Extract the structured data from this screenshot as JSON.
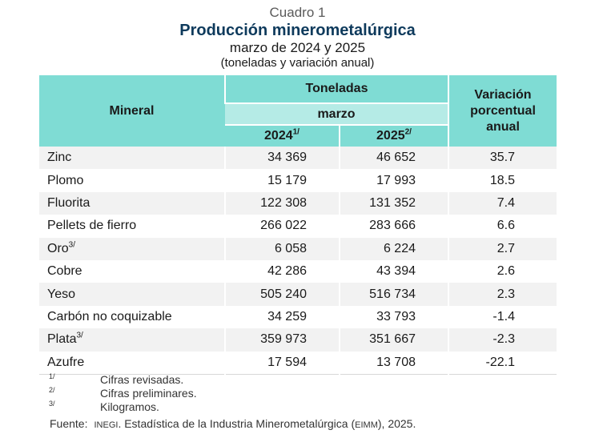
{
  "header": {
    "cuadro": "Cuadro 1",
    "title": "Producción minerometalúrgica",
    "subtitle": "marzo de 2024 y 2025",
    "units": "(toneladas y variación anual)"
  },
  "table": {
    "col_mineral": "Mineral",
    "col_toneladas": "Toneladas",
    "col_month": "marzo",
    "col_year1": "2024",
    "col_year1_note": "1/",
    "col_year2": "2025",
    "col_year2_note": "2/",
    "col_var": "Variación porcentual anual",
    "rows": [
      {
        "mineral": "Zinc",
        "note": "",
        "y2024": "34 369",
        "y2025": "46 652",
        "var": "35.7"
      },
      {
        "mineral": "Plomo",
        "note": "",
        "y2024": "15 179",
        "y2025": "17 993",
        "var": "18.5"
      },
      {
        "mineral": "Fluorita",
        "note": "",
        "y2024": "122 308",
        "y2025": "131 352",
        "var": "7.4"
      },
      {
        "mineral": "Pellets de fierro",
        "note": "",
        "y2024": "266 022",
        "y2025": "283 666",
        "var": "6.6"
      },
      {
        "mineral": "Oro",
        "note": "3/",
        "y2024": "6 058",
        "y2025": "6 224",
        "var": "2.7"
      },
      {
        "mineral": "Cobre",
        "note": "",
        "y2024": "42 286",
        "y2025": "43 394",
        "var": "2.6"
      },
      {
        "mineral": "Yeso",
        "note": "",
        "y2024": "505 240",
        "y2025": "516 734",
        "var": "2.3"
      },
      {
        "mineral": "Carbón no coquizable",
        "note": "",
        "y2024": "34 259",
        "y2025": "33 793",
        "var": "-1.4"
      },
      {
        "mineral": "Plata",
        "note": "3/",
        "y2024": "359 973",
        "y2025": "351 667",
        "var": "-2.3"
      },
      {
        "mineral": "Azufre",
        "note": "",
        "y2024": "17 594",
        "y2025": "13 708",
        "var": "-22.1"
      }
    ]
  },
  "notes": [
    {
      "mark": "1/",
      "text": "Cifras revisadas."
    },
    {
      "mark": "2/",
      "text": "Cifras preliminares."
    },
    {
      "mark": "3/",
      "text": "Kilogramos."
    }
  ],
  "source": {
    "label": "Fuente:",
    "org": "INEGI",
    "text_mid": ". Estadística de la Industria Minerometalúrgica (",
    "abbr": "EIMM",
    "text_end": "), 2025."
  }
}
